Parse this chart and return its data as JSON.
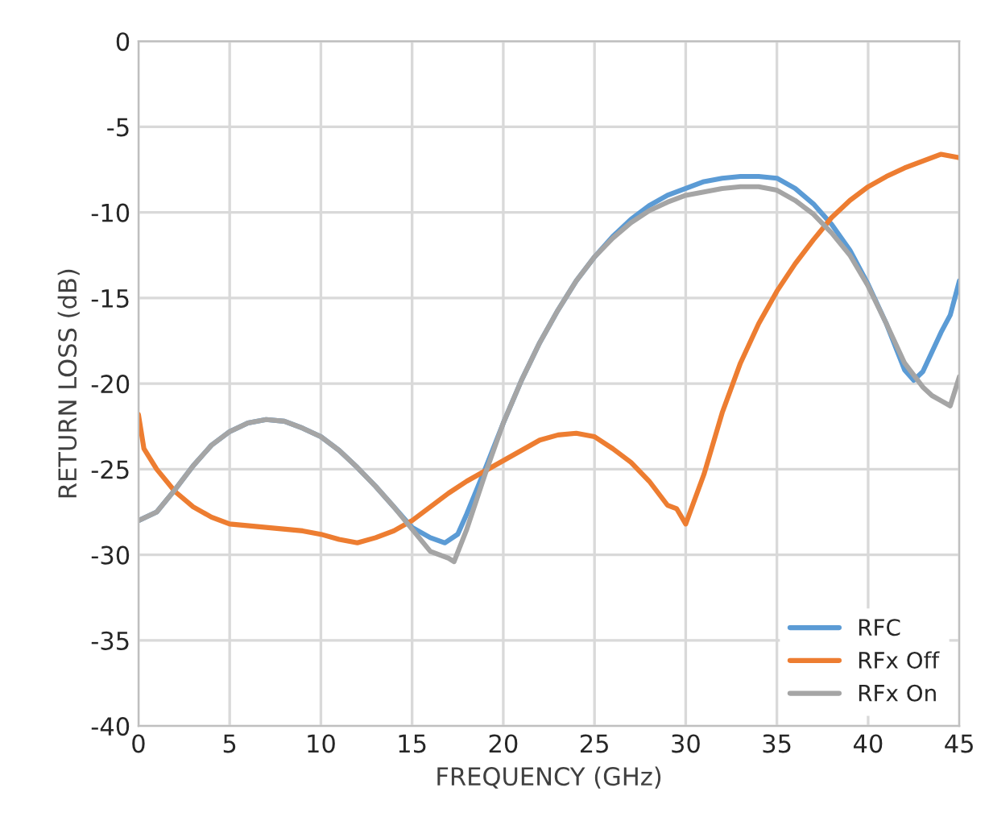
{
  "chart_data": {
    "type": "line",
    "xlabel": "FREQUENCY (GHz)",
    "ylabel": "RETURN LOSS (dB)",
    "xlim": [
      0,
      45
    ],
    "ylim": [
      -40,
      0
    ],
    "xticks": [
      0,
      5,
      10,
      15,
      20,
      25,
      30,
      35,
      40,
      45
    ],
    "yticks": [
      -40,
      -35,
      -30,
      -25,
      -20,
      -15,
      -10,
      -5,
      0
    ],
    "grid": true,
    "legend": "bottom right",
    "line_style": "solid",
    "marker": "none",
    "series": [
      {
        "name": "RFC",
        "color": "#5b9bd5",
        "x": [
          0,
          1,
          2,
          3,
          4,
          5,
          6,
          7,
          8,
          9,
          10,
          11,
          12,
          13,
          14,
          15,
          16,
          16.8,
          17.5,
          18,
          19,
          20,
          21,
          22,
          23,
          24,
          25,
          26,
          27,
          28,
          29,
          30,
          31,
          32,
          33,
          34,
          35,
          36,
          37,
          38,
          39,
          40,
          41,
          42,
          42.5,
          43,
          44,
          44.5,
          45
        ],
        "values": [
          -28,
          -27.5,
          -26.2,
          -24.8,
          -23.6,
          -22.8,
          -22.3,
          -22.1,
          -22.2,
          -22.6,
          -23.1,
          -23.9,
          -24.9,
          -26,
          -27.2,
          -28.4,
          -29,
          -29.3,
          -28.8,
          -27.6,
          -25,
          -22.3,
          -19.8,
          -17.6,
          -15.7,
          -14,
          -12.6,
          -11.4,
          -10.4,
          -9.6,
          -9,
          -8.6,
          -8.2,
          -8,
          -7.9,
          -7.9,
          -8,
          -8.6,
          -9.5,
          -10.7,
          -12.2,
          -14.2,
          -16.5,
          -19.2,
          -19.8,
          -19.3,
          -17,
          -16,
          -14
        ]
      },
      {
        "name": "RFx Off",
        "color": "#ed7d31",
        "x": [
          0,
          0.3,
          1,
          2,
          3,
          4,
          5,
          7,
          9,
          10,
          11,
          12,
          13,
          14,
          15,
          16,
          17,
          18,
          19,
          20,
          21,
          22,
          23,
          24,
          25,
          26,
          27,
          28,
          29,
          29.5,
          30,
          31,
          32,
          33,
          34,
          35,
          36,
          37,
          38,
          39,
          40,
          41,
          42,
          43,
          44,
          45
        ],
        "values": [
          -21.8,
          -23.8,
          -25,
          -26.3,
          -27.2,
          -27.8,
          -28.2,
          -28.4,
          -28.6,
          -28.8,
          -29.1,
          -29.3,
          -29,
          -28.6,
          -28,
          -27.2,
          -26.4,
          -25.7,
          -25.1,
          -24.5,
          -23.9,
          -23.3,
          -23,
          -22.9,
          -23.1,
          -23.8,
          -24.6,
          -25.7,
          -27.1,
          -27.3,
          -28.2,
          -25.3,
          -21.7,
          -18.8,
          -16.5,
          -14.6,
          -13,
          -11.6,
          -10.3,
          -9.3,
          -8.5,
          -7.9,
          -7.4,
          -7,
          -6.6,
          -6.8
        ]
      },
      {
        "name": "RFx On",
        "color": "#a5a5a5",
        "x": [
          0,
          1,
          2,
          3,
          4,
          5,
          6,
          7,
          8,
          9,
          10,
          11,
          12,
          13,
          14,
          15,
          16,
          17,
          17.3,
          18,
          19,
          20,
          21,
          22,
          23,
          24,
          25,
          26,
          27,
          28,
          29,
          30,
          31,
          32,
          33,
          34,
          35,
          36,
          37,
          38,
          39,
          40,
          41,
          42,
          43,
          43.5,
          44,
          44.5,
          45
        ],
        "values": [
          -28,
          -27.5,
          -26.2,
          -24.8,
          -23.6,
          -22.8,
          -22.3,
          -22.1,
          -22.2,
          -22.6,
          -23.1,
          -23.9,
          -24.9,
          -26,
          -27.2,
          -28.5,
          -29.8,
          -30.2,
          -30.4,
          -28.5,
          -25.3,
          -22.3,
          -19.8,
          -17.6,
          -15.7,
          -14,
          -12.6,
          -11.5,
          -10.6,
          -9.9,
          -9.4,
          -9,
          -8.8,
          -8.6,
          -8.5,
          -8.5,
          -8.7,
          -9.3,
          -10.1,
          -11.2,
          -12.5,
          -14.3,
          -16.5,
          -18.8,
          -20.2,
          -20.7,
          -21,
          -21.3,
          -19.6
        ]
      }
    ]
  }
}
